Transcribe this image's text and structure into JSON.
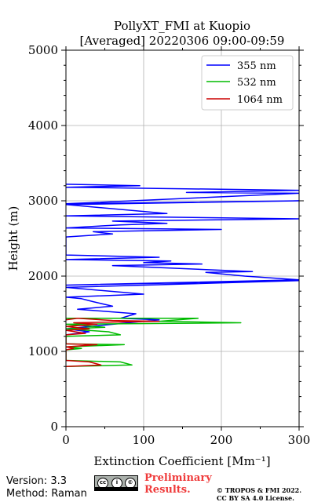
{
  "chart_data": {
    "type": "line",
    "title": "PollyXT_FMI at Kuopio",
    "subtitle": "[Averaged] 20220306 09:00-09:59",
    "xlabel": "Extinction Coefficient [Mm⁻¹]",
    "ylabel": "Height (m)",
    "xlim": [
      0,
      300
    ],
    "ylim": [
      0,
      5000
    ],
    "xticks": [
      "0",
      "100",
      "200",
      "300"
    ],
    "yticks": [
      "0",
      "1000",
      "2000",
      "3000",
      "4000",
      "5000"
    ],
    "grid": true,
    "legend_position": "top-right",
    "series": [
      {
        "name": "355 nm",
        "color": "#0000ff",
        "points": [
          [
            0,
            3220
          ],
          [
            95,
            3200
          ],
          [
            0,
            3180
          ],
          [
            300,
            3140
          ],
          [
            155,
            3110
          ],
          [
            300,
            3100
          ],
          [
            0,
            2960
          ],
          [
            300,
            3000
          ],
          [
            0,
            2950
          ],
          [
            130,
            2830
          ],
          [
            0,
            2800
          ],
          [
            300,
            2760
          ],
          [
            60,
            2730
          ],
          [
            130,
            2700
          ],
          [
            70,
            2680
          ],
          [
            0,
            2640
          ],
          [
            200,
            2620
          ],
          [
            35,
            2590
          ],
          [
            60,
            2560
          ],
          [
            0,
            2520
          ],
          [
            0,
            2280
          ],
          [
            120,
            2250
          ],
          [
            0,
            2220
          ],
          [
            135,
            2200
          ],
          [
            100,
            2180
          ],
          [
            175,
            2160
          ],
          [
            60,
            2140
          ],
          [
            240,
            2060
          ],
          [
            180,
            2050
          ],
          [
            210,
            2020
          ],
          [
            230,
            2000
          ],
          [
            300,
            1950
          ],
          [
            0,
            1880
          ],
          [
            300,
            1940
          ],
          [
            0,
            1850
          ],
          [
            100,
            1760
          ],
          [
            0,
            1720
          ],
          [
            20,
            1700
          ],
          [
            35,
            1660
          ],
          [
            60,
            1600
          ],
          [
            15,
            1560
          ],
          [
            90,
            1500
          ],
          [
            70,
            1440
          ],
          [
            120,
            1420
          ],
          [
            0,
            1300
          ],
          [
            30,
            1260
          ],
          [
            0,
            1220
          ]
        ]
      },
      {
        "name": "532 nm",
        "color": "#00bb00",
        "points": [
          [
            0,
            1440
          ],
          [
            170,
            1440
          ],
          [
            120,
            1400
          ],
          [
            225,
            1380
          ],
          [
            0,
            1360
          ],
          [
            50,
            1320
          ],
          [
            0,
            1300
          ],
          [
            55,
            1260
          ],
          [
            70,
            1220
          ],
          [
            0,
            1200
          ],
          [
            0,
            1100
          ],
          [
            75,
            1090
          ],
          [
            0,
            1060
          ],
          [
            20,
            1040
          ],
          [
            0,
            1020
          ],
          [
            0,
            880
          ],
          [
            70,
            860
          ],
          [
            85,
            820
          ],
          [
            0,
            800
          ]
        ]
      },
      {
        "name": "1064 nm",
        "color": "#cc0000",
        "points": [
          [
            0,
            1420
          ],
          [
            15,
            1440
          ],
          [
            60,
            1410
          ],
          [
            120,
            1400
          ],
          [
            10,
            1380
          ],
          [
            40,
            1360
          ],
          [
            0,
            1330
          ],
          [
            30,
            1300
          ],
          [
            0,
            1280
          ],
          [
            25,
            1240
          ],
          [
            0,
            1220
          ],
          [
            0,
            1100
          ],
          [
            40,
            1090
          ],
          [
            0,
            1060
          ],
          [
            10,
            1040
          ],
          [
            0,
            1020
          ],
          [
            0,
            880
          ],
          [
            30,
            860
          ],
          [
            45,
            820
          ],
          [
            0,
            800
          ]
        ]
      }
    ]
  },
  "footer": {
    "version": "Version: 3.3",
    "method": "Method: Raman",
    "preliminary_line1": "Preliminary",
    "preliminary_line2": "Results.",
    "copyright_line1": "© TROPOS & FMI 2022.",
    "copyright_line2": "CC BY SA 4.0 License."
  },
  "license_badge": {
    "symbols": [
      "cc",
      "i",
      "©"
    ],
    "strip": "BY SA",
    "icon": "cc-by-sa-badge"
  }
}
